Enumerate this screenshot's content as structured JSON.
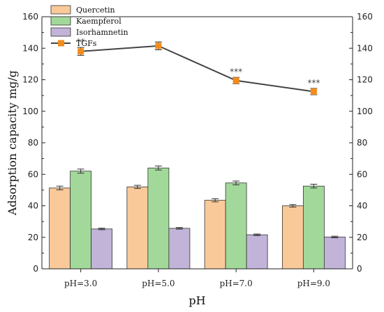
{
  "chart_data": {
    "type": "bar",
    "categories": [
      "pH=3.0",
      "pH=5.0",
      "pH=7.0",
      "pH=9.0"
    ],
    "xlabel": "pH",
    "ylabel": "Adsorption capacity mg/g",
    "ylim": [
      0,
      160
    ],
    "yticks": [
      0,
      20,
      40,
      60,
      80,
      100,
      120,
      140,
      160
    ],
    "right_axis_ticks": [
      0,
      20,
      40,
      60,
      80,
      100,
      120,
      140,
      160
    ],
    "grid": false,
    "legend_position": "top-left",
    "series": [
      {
        "name": "Quercetin",
        "type": "bar",
        "color": "#f9c99a",
        "values": [
          51.3,
          52.0,
          43.5,
          40.0
        ],
        "errors": [
          1.2,
          1.0,
          1.0,
          0.8
        ]
      },
      {
        "name": "Kaempferol",
        "type": "bar",
        "color": "#a2d99a",
        "values": [
          62.0,
          64.0,
          54.5,
          52.5
        ],
        "errors": [
          1.3,
          1.3,
          1.2,
          1.2
        ]
      },
      {
        "name": "Isorhamnetin",
        "type": "bar",
        "color": "#c2b4d8",
        "values": [
          25.3,
          25.7,
          21.6,
          20.2
        ],
        "errors": [
          0.5,
          0.5,
          0.5,
          0.5
        ]
      },
      {
        "name": "TGFs",
        "type": "line",
        "color": "#f28c1c",
        "line_color": "#444444",
        "values": [
          138.0,
          141.5,
          119.5,
          112.5
        ],
        "errors": [
          2.5,
          2.5,
          2.0,
          2.0
        ]
      }
    ],
    "annotations": [
      "**",
      "",
      "***",
      "***"
    ]
  }
}
